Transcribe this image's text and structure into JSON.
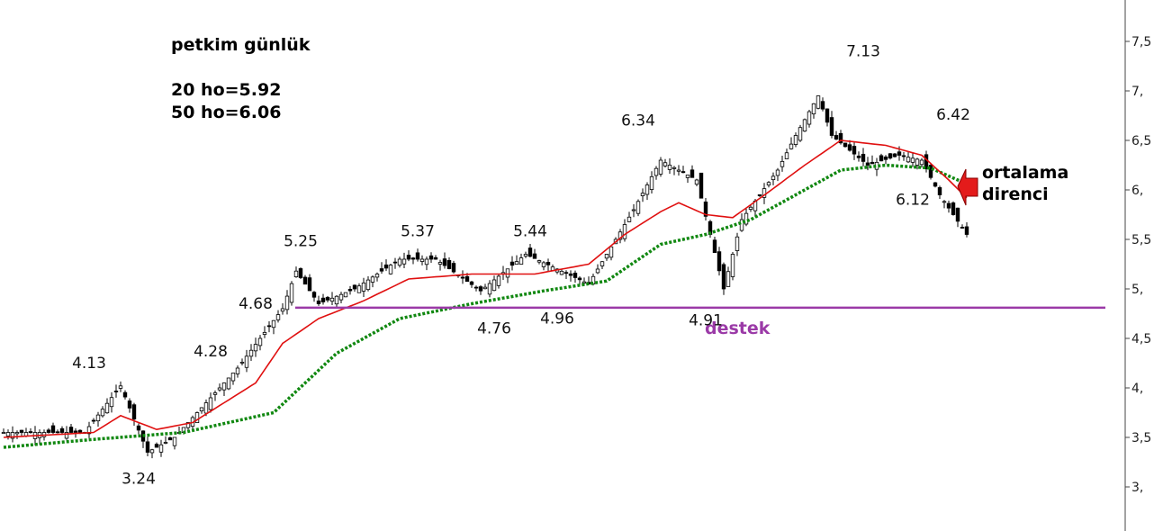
{
  "chart_data": {
    "type": "candlestick",
    "title": "petkim günlük",
    "indicators": [
      {
        "name": "20 ho",
        "value": "20 ho=5.92",
        "color": "#e01010",
        "style": "solid"
      },
      {
        "name": "50 ho",
        "value": "50 ho=6.06",
        "color": "#118811",
        "style": "dotted"
      }
    ],
    "y_axis": {
      "position": "right",
      "ylim": [
        2.6,
        7.95
      ],
      "ticks": [
        {
          "value": 3.0,
          "label": "3,"
        },
        {
          "value": 3.5,
          "label": "3,5"
        },
        {
          "value": 4.0,
          "label": "4,"
        },
        {
          "value": 4.5,
          "label": "4,5"
        },
        {
          "value": 5.0,
          "label": "5,"
        },
        {
          "value": 5.5,
          "label": "5,5"
        },
        {
          "value": 6.0,
          "label": "6,"
        },
        {
          "value": 6.5,
          "label": "6,5"
        },
        {
          "value": 7.0,
          "label": "7,"
        },
        {
          "value": 7.5,
          "label": "7,5"
        }
      ]
    },
    "bar_count": 200,
    "key_points": [
      {
        "bar": 0,
        "price": 3.55
      },
      {
        "bar": 18,
        "price": 3.55
      },
      {
        "bar": 26,
        "price": 4.02
      },
      {
        "bar": 32,
        "price": 3.35
      },
      {
        "bar": 38,
        "price": 3.5
      },
      {
        "bar": 52,
        "price": 4.2
      },
      {
        "bar": 62,
        "price": 4.8
      },
      {
        "bar": 65,
        "price": 5.18
      },
      {
        "bar": 70,
        "price": 4.85
      },
      {
        "bar": 78,
        "price": 5.0
      },
      {
        "bar": 88,
        "price": 5.3
      },
      {
        "bar": 96,
        "price": 5.3
      },
      {
        "bar": 106,
        "price": 4.98
      },
      {
        "bar": 116,
        "price": 5.35
      },
      {
        "bar": 130,
        "price": 5.05
      },
      {
        "bar": 140,
        "price": 5.8
      },
      {
        "bar": 146,
        "price": 6.3
      },
      {
        "bar": 154,
        "price": 6.1
      },
      {
        "bar": 160,
        "price": 5.0
      },
      {
        "bar": 164,
        "price": 5.7
      },
      {
        "bar": 172,
        "price": 6.2
      },
      {
        "bar": 176,
        "price": 6.55
      },
      {
        "bar": 181,
        "price": 6.95
      },
      {
        "bar": 184,
        "price": 6.55
      },
      {
        "bar": 192,
        "price": 6.25
      },
      {
        "bar": 199,
        "price": 6.35
      },
      {
        "bar": 204,
        "price": 6.3
      },
      {
        "bar": 208,
        "price": 5.95
      },
      {
        "bar": 214,
        "price": 5.55
      }
    ],
    "ma20_points": [
      {
        "bar": 0,
        "price": 3.5
      },
      {
        "bar": 20,
        "price": 3.55
      },
      {
        "bar": 26,
        "price": 3.72
      },
      {
        "bar": 34,
        "price": 3.58
      },
      {
        "bar": 42,
        "price": 3.65
      },
      {
        "bar": 56,
        "price": 4.05
      },
      {
        "bar": 62,
        "price": 4.45
      },
      {
        "bar": 70,
        "price": 4.7
      },
      {
        "bar": 80,
        "price": 4.88
      },
      {
        "bar": 90,
        "price": 5.1
      },
      {
        "bar": 104,
        "price": 5.15
      },
      {
        "bar": 118,
        "price": 5.15
      },
      {
        "bar": 130,
        "price": 5.25
      },
      {
        "bar": 138,
        "price": 5.55
      },
      {
        "bar": 146,
        "price": 5.78
      },
      {
        "bar": 150,
        "price": 5.87
      },
      {
        "bar": 156,
        "price": 5.75
      },
      {
        "bar": 162,
        "price": 5.72
      },
      {
        "bar": 170,
        "price": 5.98
      },
      {
        "bar": 178,
        "price": 6.25
      },
      {
        "bar": 186,
        "price": 6.5
      },
      {
        "bar": 196,
        "price": 6.45
      },
      {
        "bar": 204,
        "price": 6.35
      },
      {
        "bar": 210,
        "price": 6.1
      },
      {
        "bar": 214,
        "price": 5.92
      }
    ],
    "ma50_points": [
      {
        "bar": 0,
        "price": 3.4
      },
      {
        "bar": 20,
        "price": 3.48
      },
      {
        "bar": 40,
        "price": 3.55
      },
      {
        "bar": 60,
        "price": 3.75
      },
      {
        "bar": 74,
        "price": 4.35
      },
      {
        "bar": 88,
        "price": 4.7
      },
      {
        "bar": 104,
        "price": 4.85
      },
      {
        "bar": 120,
        "price": 4.98
      },
      {
        "bar": 134,
        "price": 5.08
      },
      {
        "bar": 146,
        "price": 5.45
      },
      {
        "bar": 156,
        "price": 5.55
      },
      {
        "bar": 166,
        "price": 5.7
      },
      {
        "bar": 176,
        "price": 5.95
      },
      {
        "bar": 186,
        "price": 6.2
      },
      {
        "bar": 196,
        "price": 6.25
      },
      {
        "bar": 206,
        "price": 6.22
      },
      {
        "bar": 214,
        "price": 6.06
      }
    ],
    "annotations": [
      {
        "id": "a-413",
        "text": "4.13",
        "bar": 19,
        "price": 4.2
      },
      {
        "id": "a-324",
        "text": "3.24",
        "bar": 30,
        "price": 3.03
      },
      {
        "id": "a-428",
        "text": "4.28",
        "bar": 46,
        "price": 4.32
      },
      {
        "id": "a-468",
        "text": "4.68",
        "bar": 56,
        "price": 4.8
      },
      {
        "id": "a-525",
        "text": "5.25",
        "bar": 66,
        "price": 5.43
      },
      {
        "id": "a-537",
        "text": "5.37",
        "bar": 92,
        "price": 5.53
      },
      {
        "id": "a-476",
        "text": "4.76",
        "bar": 109,
        "price": 4.55
      },
      {
        "id": "a-544",
        "text": "5.44",
        "bar": 117,
        "price": 5.53
      },
      {
        "id": "a-496",
        "text": "4.96",
        "bar": 123,
        "price": 4.65
      },
      {
        "id": "a-634",
        "text": "6.34",
        "bar": 141,
        "price": 6.65
      },
      {
        "id": "a-491",
        "text": "4.91",
        "bar": 156,
        "price": 4.63
      },
      {
        "id": "a-713",
        "text": "7.13",
        "bar": 191,
        "price": 7.35
      },
      {
        "id": "a-612",
        "text": "6.12",
        "bar": 202,
        "price": 5.85
      },
      {
        "id": "a-642",
        "text": "6.42",
        "bar": 211,
        "price": 6.71
      }
    ],
    "support_line": {
      "price": 4.81,
      "from_bar": 66,
      "label": "destek",
      "color": "#9b3aa7"
    },
    "resistance_note": {
      "lines": [
        "ortalama",
        "direnci"
      ],
      "arrow_color": "#e41b1b"
    }
  }
}
